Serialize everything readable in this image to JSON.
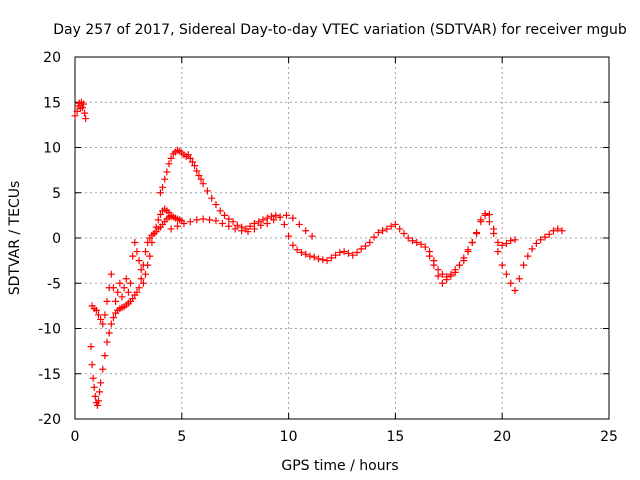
{
  "chart_data": {
    "type": "scatter",
    "title": "Day 257 of 2017, Sidereal Day-to-day VTEC variation (SDTVAR) for receiver mgub",
    "xlabel": "GPS time / hours",
    "ylabel": "SDTVAR / TECUs",
    "xlim": [
      0,
      25
    ],
    "ylim": [
      -20,
      20
    ],
    "xticks": [
      "0",
      "5",
      "10",
      "15",
      "20",
      "25"
    ],
    "yticks": [
      "-20",
      "-15",
      "-10",
      "-5",
      "0",
      "5",
      "10",
      "15",
      "20"
    ],
    "grid": true,
    "marker": "plus",
    "color": "#ff0000",
    "series": [
      {
        "name": "early",
        "x": [
          0.0,
          0.1,
          0.15,
          0.2,
          0.25,
          0.3,
          0.35,
          0.4,
          0.45,
          0.5
        ],
        "y": [
          13.5,
          14.0,
          14.6,
          14.9,
          14.3,
          15.0,
          14.4,
          14.8,
          13.8,
          13.2
        ]
      },
      {
        "name": "branch-a",
        "x": [
          0.75,
          0.8,
          0.85,
          0.9,
          0.95,
          1.0,
          1.05,
          1.1,
          1.15,
          1.2,
          1.3,
          1.4,
          1.5,
          1.6,
          1.7,
          1.8,
          1.9,
          2.0,
          2.1,
          2.2,
          2.3,
          2.4,
          2.5,
          2.6,
          2.7,
          2.8,
          2.9,
          3.0,
          3.1,
          3.2,
          3.3,
          3.4,
          3.5,
          3.6,
          3.7,
          3.8,
          3.9,
          4.0,
          4.1,
          4.2,
          4.3,
          4.4,
          4.5,
          4.6,
          4.7,
          4.8,
          4.9,
          5.0
        ],
        "y": [
          -12,
          -14,
          -15.5,
          -16.5,
          -17.5,
          -18.2,
          -18.5,
          -18.0,
          -17.0,
          -16.0,
          -14.5,
          -13.0,
          -11.5,
          -10.5,
          -9.5,
          -8.8,
          -8.3,
          -8.0,
          -7.8,
          -7.7,
          -7.6,
          -7.4,
          -7.2,
          -7.0,
          -6.7,
          -6.3,
          -6.0,
          -5.5,
          -4.5,
          -3.0,
          -1.5,
          -0.5,
          0.0,
          0.3,
          0.5,
          0.7,
          1.0,
          1.2,
          1.5,
          1.8,
          2.1,
          2.3,
          2.4,
          2.3,
          2.2,
          2.1,
          2.0,
          1.9
        ]
      },
      {
        "name": "branch-b",
        "x": [
          0.8,
          0.9,
          1.0,
          1.1,
          1.2,
          1.3,
          1.4,
          1.5,
          1.6,
          1.7,
          1.8,
          1.9,
          2.0,
          2.1,
          2.2,
          2.3,
          2.4,
          2.5,
          2.6,
          2.7,
          2.8,
          2.9,
          3.0,
          3.1,
          3.2,
          3.3,
          3.4,
          3.5,
          3.6,
          3.7,
          3.8,
          3.9,
          4.0,
          4.1,
          4.2,
          4.3,
          4.4,
          4.5
        ],
        "y": [
          -7.5,
          -7.8,
          -8.0,
          -8.5,
          -9.0,
          -9.5,
          -8.5,
          -7.0,
          -5.5,
          -4.0,
          -5.5,
          -7.0,
          -6.0,
          -5.0,
          -6.5,
          -5.5,
          -4.5,
          -6.0,
          -5.0,
          -2.0,
          -0.5,
          -1.5,
          -2.5,
          -3.5,
          -5.0,
          -4.0,
          -3.0,
          -2.0,
          -0.5,
          0.5,
          1.2,
          2.0,
          2.6,
          3.0,
          3.2,
          3.0,
          2.8,
          2.5
        ]
      },
      {
        "name": "main",
        "x": [
          4.0,
          4.1,
          4.2,
          4.3,
          4.4,
          4.5,
          4.6,
          4.7,
          4.8,
          4.9,
          5.0,
          5.1,
          5.2,
          5.3,
          5.4,
          5.5,
          5.6,
          5.7,
          5.8,
          5.9,
          6.0,
          6.2,
          6.4,
          6.6,
          6.8,
          7.0,
          7.2,
          7.4,
          7.6,
          7.8,
          8.0,
          8.2,
          8.4,
          8.6,
          8.8,
          9.0,
          9.2,
          9.4,
          9.6,
          9.8,
          10.0,
          10.2,
          10.4,
          10.6,
          10.8,
          11.0,
          11.2,
          11.4,
          11.6,
          11.8,
          12.0,
          12.2,
          12.4,
          12.6,
          12.8,
          13.0,
          13.2,
          13.4,
          13.6,
          13.8,
          14.0,
          14.2,
          14.4,
          14.6,
          14.8,
          15.0,
          15.2,
          15.4,
          15.6,
          15.8,
          16.0,
          16.2,
          16.4,
          16.6,
          16.8,
          17.0,
          17.2,
          17.4,
          17.6,
          17.8,
          18.0,
          18.2,
          18.4,
          18.6,
          18.8,
          19.0,
          19.2,
          19.4,
          19.6,
          19.8,
          20.0,
          20.2,
          20.4,
          20.6,
          20.8,
          21.0,
          21.2,
          21.4,
          21.6,
          21.8,
          22.0,
          22.2,
          22.4,
          22.6,
          22.8
        ],
        "y": [
          5.0,
          5.6,
          6.5,
          7.3,
          8.2,
          8.8,
          9.3,
          9.5,
          9.7,
          9.6,
          9.4,
          9.2,
          9.0,
          9.2,
          8.8,
          8.4,
          8.0,
          7.4,
          6.9,
          6.5,
          6.0,
          5.2,
          4.4,
          3.7,
          3.0,
          2.5,
          2.1,
          1.8,
          1.4,
          1.2,
          1.0,
          1.3,
          1.6,
          1.8,
          2.0,
          2.2,
          2.4,
          2.5,
          2.3,
          1.5,
          0.2,
          -0.8,
          -1.3,
          -1.6,
          -1.8,
          -2.0,
          -2.1,
          -2.3,
          -2.4,
          -2.5,
          -2.2,
          -1.9,
          -1.6,
          -1.5,
          -1.7,
          -1.9,
          -1.6,
          -1.2,
          -0.9,
          -0.5,
          0.1,
          0.6,
          0.8,
          1.0,
          1.3,
          1.5,
          1.0,
          0.5,
          0.0,
          -0.3,
          -0.5,
          -0.7,
          -1.0,
          -1.5,
          -2.5,
          -3.5,
          -4.0,
          -4.3,
          -4.2,
          -3.8,
          -3.0,
          -2.2,
          -1.3,
          -0.5,
          0.6,
          2.0,
          2.7,
          2.6,
          1.0,
          -1.5,
          -3.0,
          -4.0,
          -5.0,
          -5.8,
          -4.5,
          -3.0,
          -2.0,
          -1.2,
          -0.6,
          -0.2,
          0.1,
          0.4,
          0.8,
          1.0,
          0.8
        ]
      },
      {
        "name": "parallel",
        "x": [
          4.5,
          4.8,
          5.1,
          5.4,
          5.7,
          6.0,
          6.3,
          6.6,
          6.9,
          7.2,
          7.5,
          7.8,
          8.1,
          8.4,
          8.7,
          9.0,
          9.3,
          9.6,
          9.9,
          10.2,
          10.5,
          10.8,
          11.1,
          16.6,
          16.8,
          17.0,
          17.2,
          17.4,
          17.6,
          17.8,
          18.0,
          18.2,
          18.4,
          18.6,
          18.8,
          19.0,
          19.2,
          19.4,
          19.6,
          19.8,
          20.0,
          20.2,
          20.4,
          20.6
        ],
        "y": [
          1.0,
          1.3,
          1.6,
          1.8,
          2.0,
          2.1,
          2.0,
          1.9,
          1.6,
          1.3,
          1.0,
          0.8,
          0.7,
          1.0,
          1.4,
          1.6,
          2.0,
          2.3,
          2.5,
          2.2,
          1.5,
          0.8,
          0.2,
          -2.0,
          -3.0,
          -4.2,
          -5.0,
          -4.6,
          -4.0,
          -3.5,
          -3.0,
          -2.5,
          -1.5,
          -0.5,
          0.5,
          1.8,
          2.5,
          1.8,
          0.5,
          -0.5,
          -0.8,
          -0.6,
          -0.3,
          -0.2
        ]
      }
    ]
  }
}
